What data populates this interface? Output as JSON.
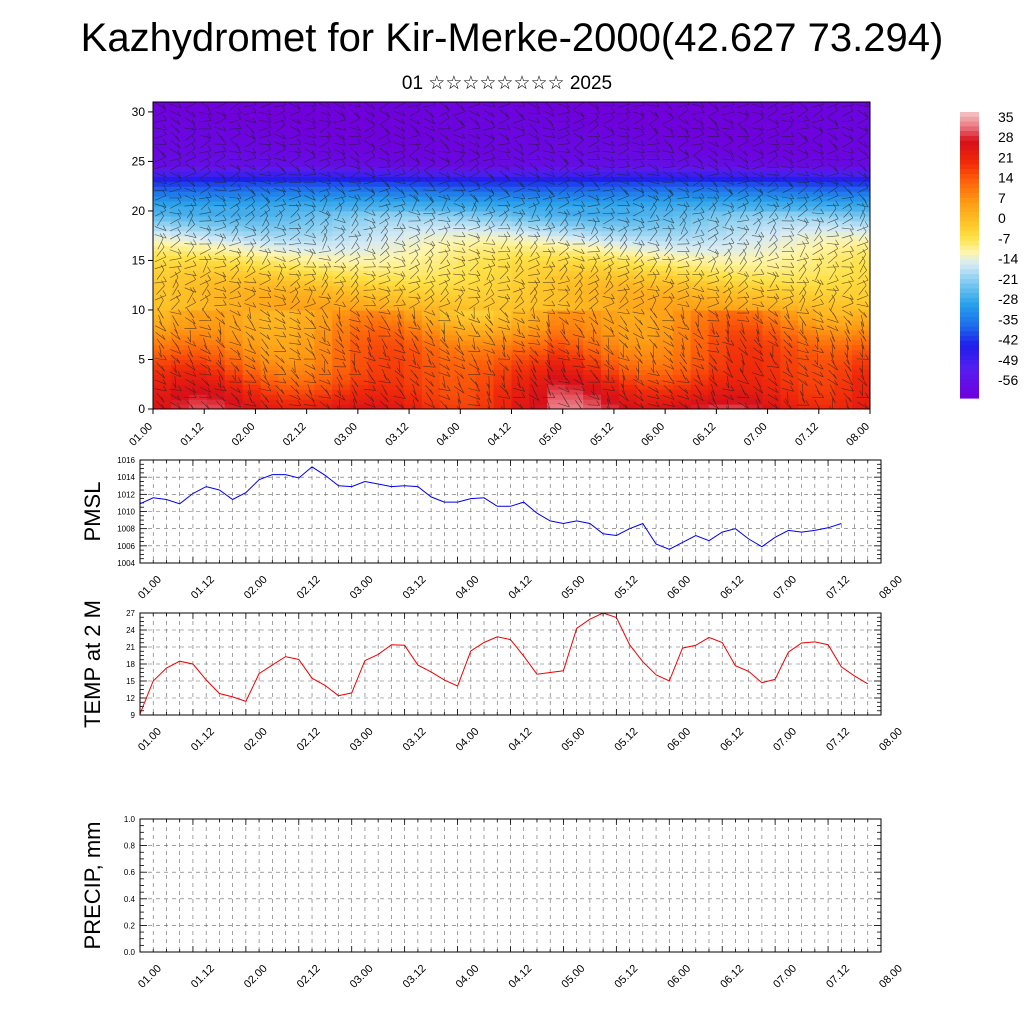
{
  "title": "Kazhydromet for Kir-Merke-2000(42.627 73.294)",
  "subtitle": "01 ☆☆☆☆☆☆☆☆ 2025",
  "chart_data": [
    {
      "type": "heatmap",
      "name": "vertical temperature and wind cross-section",
      "x_labels": [
        "01.00",
        "01.12",
        "02.00",
        "02.12",
        "03.00",
        "03.12",
        "04.00",
        "04.12",
        "05.00",
        "05.12",
        "06.00",
        "06.12",
        "07.00",
        "07.12",
        "08.00"
      ],
      "ylim": [
        0,
        31
      ],
      "y_ticks": [
        0,
        5,
        10,
        15,
        20,
        25,
        30
      ],
      "colorbar": {
        "labels": [
          "35",
          "28",
          "21",
          "14",
          "7",
          "0",
          "-7",
          "-14",
          "-21",
          "-28",
          "-35",
          "-42",
          "-49",
          "-56"
        ],
        "range": [
          -60,
          38
        ]
      },
      "temperature_profile_by_height": [
        {
          "h": 0,
          "t": 25
        },
        {
          "h": 3,
          "t": 18
        },
        {
          "h": 6,
          "t": 12
        },
        {
          "h": 9,
          "t": 5
        },
        {
          "h": 12,
          "t": 0
        },
        {
          "h": 15,
          "t": -7
        },
        {
          "h": 17,
          "t": -13
        },
        {
          "h": 19,
          "t": -20
        },
        {
          "h": 21,
          "t": -28
        },
        {
          "h": 23,
          "t": -40
        },
        {
          "h": 24.6,
          "t": -56
        },
        {
          "h": 26,
          "t": -58
        },
        {
          "h": 31,
          "t": -60
        }
      ],
      "wind_barbs": "dense field of wind barbs over the whole section"
    },
    {
      "type": "line",
      "ylabel": "PMSL",
      "ylim": [
        1004,
        1016
      ],
      "y_ticks": [
        1004,
        1006,
        1008,
        1010,
        1012,
        1014,
        1016
      ],
      "x_labels": [
        "01.00",
        "01.12",
        "02.00",
        "02.12",
        "03.00",
        "03.12",
        "04.00",
        "04.12",
        "05.00",
        "05.12",
        "06.00",
        "06.12",
        "07.00",
        "07.12",
        "08.00"
      ],
      "xlim": [
        0,
        56
      ],
      "color": "#0000ee",
      "series": [
        {
          "x": [
            0,
            1,
            2,
            3,
            4,
            5,
            6,
            7,
            8,
            9,
            10,
            11,
            12,
            13,
            14,
            15,
            16,
            17,
            18,
            19,
            20,
            21,
            22,
            23,
            24,
            25,
            26,
            27,
            28,
            29,
            30,
            31,
            32,
            33,
            34,
            35,
            36,
            37,
            38,
            39,
            40,
            41,
            42,
            43,
            44,
            45,
            46,
            47,
            48,
            49,
            50,
            51,
            52,
            53
          ],
          "values": [
            1010.9,
            1011.6,
            1011.4,
            1010.9,
            1012.1,
            1012.9,
            1012.5,
            1011.4,
            1012.2,
            1013.7,
            1014.3,
            1014.3,
            1013.9,
            1015.2,
            1014.2,
            1013.0,
            1012.9,
            1013.5,
            1013.2,
            1012.9,
            1013.0,
            1012.9,
            1011.7,
            1011.1,
            1011.1,
            1011.5,
            1011.6,
            1010.6,
            1010.6,
            1011.1,
            1009.8,
            1008.9,
            1008.6,
            1008.9,
            1008.6,
            1007.4,
            1007.2,
            1008.0,
            1008.6,
            1006.2,
            1005.6,
            1006.4,
            1007.2,
            1006.6,
            1007.6,
            1008.0,
            1006.8,
            1005.9,
            1007.0,
            1007.8,
            1007.6,
            1007.8,
            1008.1,
            1008.6
          ]
        }
      ]
    },
    {
      "type": "line",
      "ylabel": "TEMP at 2 M",
      "ylim": [
        9,
        27
      ],
      "y_ticks": [
        9,
        12,
        15,
        18,
        21,
        24,
        27
      ],
      "x_labels": [
        "01.00",
        "01.12",
        "02.00",
        "02.12",
        "03.00",
        "03.12",
        "04.00",
        "04.12",
        "05.00",
        "05.12",
        "06.00",
        "06.12",
        "07.00",
        "07.12",
        "08.00"
      ],
      "xlim": [
        0,
        56
      ],
      "color": "#ee0000",
      "series": [
        {
          "x": [
            0,
            1,
            2,
            3,
            4,
            5,
            6,
            7,
            8,
            9,
            10,
            11,
            12,
            13,
            14,
            15,
            16,
            17,
            18,
            19,
            20,
            21,
            22,
            23,
            24,
            25,
            26,
            27,
            28,
            29,
            30,
            31,
            32,
            33,
            34,
            35,
            36,
            37,
            38,
            39,
            40,
            41,
            42,
            43,
            44,
            45,
            46,
            47,
            48,
            49,
            50,
            51,
            52,
            53,
            54,
            55
          ],
          "values": [
            9.2,
            15.0,
            17.3,
            18.5,
            18.0,
            15.2,
            12.8,
            12.2,
            11.4,
            16.3,
            17.8,
            19.3,
            18.8,
            15.5,
            14.2,
            12.4,
            12.9,
            18.6,
            19.7,
            21.4,
            21.3,
            17.8,
            16.6,
            15.2,
            14.1,
            20.3,
            21.8,
            22.8,
            22.3,
            19.4,
            16.2,
            16.5,
            16.8,
            24.3,
            25.9,
            27.0,
            26.2,
            21.4,
            18.4,
            16.1,
            15.0,
            20.8,
            21.3,
            22.7,
            21.8,
            17.7,
            16.7,
            14.7,
            15.3,
            20.1,
            21.7,
            21.9,
            21.4,
            17.5,
            15.9,
            14.5
          ]
        }
      ]
    },
    {
      "type": "line",
      "ylabel": "PRECIP, mm",
      "ylim": [
        0.0,
        1.0
      ],
      "y_ticks": [
        0.0,
        0.2,
        0.4,
        0.6,
        0.8,
        1.0
      ],
      "x_labels": [
        "01.00",
        "01.12",
        "02.00",
        "02.12",
        "03.00",
        "03.12",
        "04.00",
        "04.12",
        "05.00",
        "05.12",
        "06.00",
        "06.12",
        "07.00",
        "07.12",
        "08.00"
      ],
      "xlim": [
        0,
        56
      ],
      "color": "#006400",
      "series": [
        {
          "x": [
            0,
            56
          ],
          "values": [
            0,
            0
          ]
        }
      ]
    }
  ]
}
